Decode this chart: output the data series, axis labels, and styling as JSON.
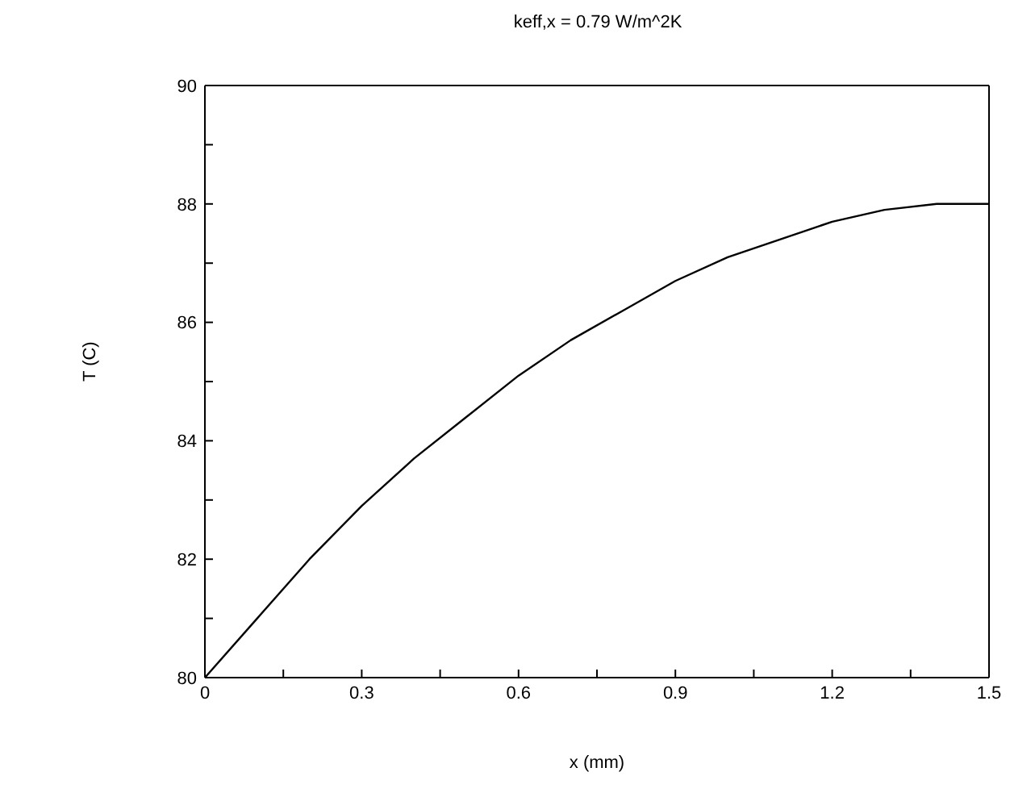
{
  "chart_data": {
    "type": "line",
    "title": "keff,x = 0.79 W/m^2K",
    "xlabel": "x (mm)",
    "ylabel": "T (C)",
    "x": [
      0,
      0.1,
      0.2,
      0.3,
      0.4,
      0.5,
      0.6,
      0.7,
      0.8,
      0.9,
      1.0,
      1.1,
      1.2,
      1.3,
      1.4,
      1.5
    ],
    "series": [
      {
        "color": "#000000",
        "values": [
          80.0,
          81.0,
          82.0,
          82.9,
          83.7,
          84.4,
          85.1,
          85.7,
          86.2,
          86.7,
          87.1,
          87.4,
          87.7,
          87.9,
          88.0,
          88.0
        ]
      }
    ],
    "xlim": [
      0,
      1.5
    ],
    "ylim": [
      80,
      90
    ],
    "xticks": [
      0,
      {
        "value": 0.15,
        "label": null
      },
      0.3,
      {
        "value": 0.45,
        "label": null
      },
      0.6,
      {
        "value": 0.75,
        "label": null
      },
      0.9,
      {
        "value": 1.05,
        "label": null
      },
      1.2,
      {
        "value": 1.35,
        "label": null
      },
      1.5
    ],
    "yticks": [
      80,
      {
        "value": 81,
        "label": null
      },
      82,
      {
        "value": 83,
        "label": null
      },
      84,
      {
        "value": 85,
        "label": null
      },
      86,
      {
        "value": 87,
        "label": null
      },
      88,
      {
        "value": 89,
        "label": null
      },
      90
    ],
    "grid": false,
    "legend": false,
    "marker": "none",
    "line_style": "solid"
  }
}
